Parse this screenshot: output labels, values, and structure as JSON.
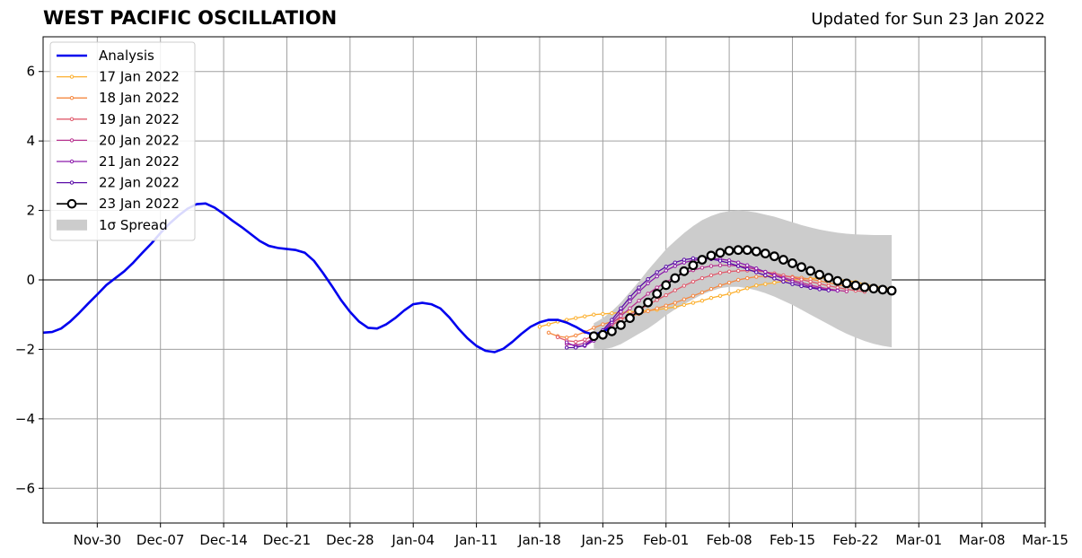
{
  "header": {
    "title": "WEST PACIFIC OSCILLATION",
    "updated": "Updated for Sun 23 Jan 2022"
  },
  "chart_data": {
    "type": "line",
    "title": "WEST PACIFIC OSCILLATION",
    "subtitle": "Updated for Sun 23 Jan 2022",
    "xlabel": "",
    "ylabel": "",
    "x_range": [
      "2021-11-24",
      "2022-03-15"
    ],
    "ylim": [
      -7,
      7
    ],
    "x_ticks": [
      "Nov-30",
      "Dec-07",
      "Dec-14",
      "Dec-21",
      "Dec-28",
      "Jan-04",
      "Jan-11",
      "Jan-18",
      "Jan-25",
      "Feb-01",
      "Feb-08",
      "Feb-15",
      "Feb-22",
      "Mar-01",
      "Mar-08",
      "Mar-15"
    ],
    "y_ticks": [
      "−6",
      "−4",
      "−2",
      "0",
      "2",
      "4",
      "6"
    ],
    "y_tick_values": [
      -6,
      -4,
      -2,
      0,
      2,
      4,
      6
    ],
    "grid": true,
    "legend_position": "top-left",
    "zero_line": 0,
    "legend": [
      "Analysis",
      "17 Jan 2022",
      "18 Jan 2022",
      "19 Jan 2022",
      "20 Jan 2022",
      "21 Jan 2022",
      "22 Jan 2022",
      "23 Jan 2022",
      "1σ Spread"
    ],
    "analysis": {
      "name": "Analysis",
      "color": "#0000ee",
      "start": "2021-11-24",
      "values": [
        -1.52,
        -1.5,
        -1.4,
        -1.2,
        -0.95,
        -0.68,
        -0.42,
        -0.15,
        0.05,
        0.25,
        0.5,
        0.78,
        1.05,
        1.35,
        1.62,
        1.85,
        2.05,
        2.18,
        2.2,
        2.08,
        1.9,
        1.7,
        1.52,
        1.32,
        1.12,
        0.98,
        0.92,
        0.89,
        0.86,
        0.78,
        0.55,
        0.2,
        -0.18,
        -0.58,
        -0.92,
        -1.2,
        -1.38,
        -1.4,
        -1.28,
        -1.1,
        -0.88,
        -0.7,
        -0.66,
        -0.7,
        -0.82,
        -1.08,
        -1.4,
        -1.68,
        -1.9,
        -2.04,
        -2.08,
        -1.98,
        -1.78,
        -1.55,
        -1.35,
        -1.22,
        -1.15,
        -1.15,
        -1.23,
        -1.35,
        -1.5,
        -1.58,
        -1.5,
        -1.35
      ]
    },
    "forecasts": [
      {
        "name": "17 Jan 2022",
        "color": "#fcb030",
        "start": "2022-01-18",
        "values": [
          -1.35,
          -1.28,
          -1.2,
          -1.15,
          -1.1,
          -1.05,
          -1.0,
          -0.98,
          -0.96,
          -0.94,
          -0.92,
          -0.9,
          -0.88,
          -0.86,
          -0.82,
          -0.78,
          -0.72,
          -0.66,
          -0.6,
          -0.52,
          -0.46,
          -0.4,
          -0.32,
          -0.24,
          -0.16,
          -0.12,
          -0.08,
          -0.04,
          0.0,
          0.02,
          0.04,
          0.05,
          0.05,
          0.02,
          -0.02,
          -0.06,
          -0.12,
          -0.18,
          -0.22,
          -0.26
        ]
      },
      {
        "name": "18 Jan 2022",
        "color": "#f58840",
        "start": "2022-01-19",
        "values": [
          -1.52,
          -1.62,
          -1.66,
          -1.6,
          -1.5,
          -1.38,
          -1.28,
          -1.2,
          -1.12,
          -1.05,
          -0.98,
          -0.9,
          -0.82,
          -0.74,
          -0.66,
          -0.56,
          -0.46,
          -0.36,
          -0.26,
          -0.16,
          -0.08,
          0.0,
          0.05,
          0.09,
          0.11,
          0.12,
          0.11,
          0.09,
          0.06,
          0.02,
          -0.03,
          -0.08,
          -0.14,
          -0.19,
          -0.24,
          -0.28,
          -0.3,
          -0.32,
          -0.33
        ]
      },
      {
        "name": "19 Jan 2022",
        "color": "#e05c6e",
        "start": "2022-01-20",
        "values": [
          -1.65,
          -1.75,
          -1.78,
          -1.72,
          -1.6,
          -1.45,
          -1.3,
          -1.15,
          -1.0,
          -0.86,
          -0.72,
          -0.58,
          -0.44,
          -0.3,
          -0.17,
          -0.05,
          0.05,
          0.13,
          0.2,
          0.24,
          0.26,
          0.27,
          0.26,
          0.23,
          0.19,
          0.13,
          0.07,
          0.01,
          -0.05,
          -0.11,
          -0.17,
          -0.22,
          -0.27,
          -0.31,
          -0.34
        ]
      },
      {
        "name": "20 Jan 2022",
        "color": "#b8328f",
        "start": "2022-01-21",
        "values": [
          -1.85,
          -1.88,
          -1.82,
          -1.68,
          -1.48,
          -1.26,
          -1.04,
          -0.82,
          -0.6,
          -0.4,
          -0.22,
          -0.06,
          0.08,
          0.19,
          0.28,
          0.35,
          0.4,
          0.42,
          0.42,
          0.4,
          0.36,
          0.3,
          0.23,
          0.15,
          0.07,
          -0.01,
          -0.08,
          -0.15,
          -0.21,
          -0.26,
          -0.3,
          -0.33
        ]
      },
      {
        "name": "21 Jan 2022",
        "color": "#8c1aab",
        "start": "2022-01-21",
        "values": [
          -1.8,
          -1.92,
          -1.9,
          -1.75,
          -1.5,
          -1.22,
          -0.92,
          -0.62,
          -0.34,
          -0.1,
          0.1,
          0.27,
          0.4,
          0.5,
          0.56,
          0.6,
          0.61,
          0.6,
          0.56,
          0.5,
          0.42,
          0.33,
          0.23,
          0.13,
          0.04,
          -0.05,
          -0.13,
          -0.2,
          -0.25,
          -0.29,
          -0.31
        ]
      },
      {
        "name": "22 Jan 2022",
        "color": "#5a0ca8",
        "start": "2022-01-21",
        "values": [
          -1.95,
          -1.95,
          -1.88,
          -1.7,
          -1.45,
          -1.15,
          -0.82,
          -0.5,
          -0.22,
          0.02,
          0.22,
          0.38,
          0.5,
          0.58,
          0.62,
          0.63,
          0.6,
          0.55,
          0.48,
          0.4,
          0.31,
          0.22,
          0.13,
          0.04,
          -0.05,
          -0.12,
          -0.18,
          -0.23,
          -0.27,
          -0.3
        ]
      }
    ],
    "latest": {
      "name": "23 Jan 2022",
      "color": "#000000",
      "start": "2022-01-24",
      "values": [
        -1.62,
        -1.58,
        -1.48,
        -1.3,
        -1.1,
        -0.88,
        -0.65,
        -0.4,
        -0.15,
        0.05,
        0.25,
        0.42,
        0.58,
        0.7,
        0.78,
        0.84,
        0.86,
        0.86,
        0.82,
        0.76,
        0.68,
        0.58,
        0.48,
        0.37,
        0.26,
        0.15,
        0.06,
        -0.03,
        -0.1,
        -0.16,
        -0.21,
        -0.25,
        -0.28,
        -0.31
      ]
    },
    "spread": {
      "name": "1σ Spread",
      "color": "#cccccc",
      "start": "2022-01-24",
      "upper": [
        -1.25,
        -1.1,
        -0.9,
        -0.65,
        -0.35,
        -0.05,
        0.28,
        0.58,
        0.88,
        1.12,
        1.35,
        1.55,
        1.72,
        1.84,
        1.93,
        1.98,
        2.0,
        1.98,
        1.94,
        1.88,
        1.82,
        1.74,
        1.66,
        1.58,
        1.51,
        1.45,
        1.4,
        1.36,
        1.33,
        1.31,
        1.3,
        1.29,
        1.29,
        1.29
      ],
      "lower": [
        -1.98,
        -2.0,
        -1.95,
        -1.85,
        -1.7,
        -1.55,
        -1.4,
        -1.22,
        -1.02,
        -0.85,
        -0.7,
        -0.56,
        -0.42,
        -0.32,
        -0.24,
        -0.2,
        -0.2,
        -0.24,
        -0.3,
        -0.38,
        -0.48,
        -0.6,
        -0.72,
        -0.86,
        -1.0,
        -1.14,
        -1.28,
        -1.42,
        -1.55,
        -1.66,
        -1.76,
        -1.84,
        -1.9,
        -1.94
      ]
    }
  }
}
